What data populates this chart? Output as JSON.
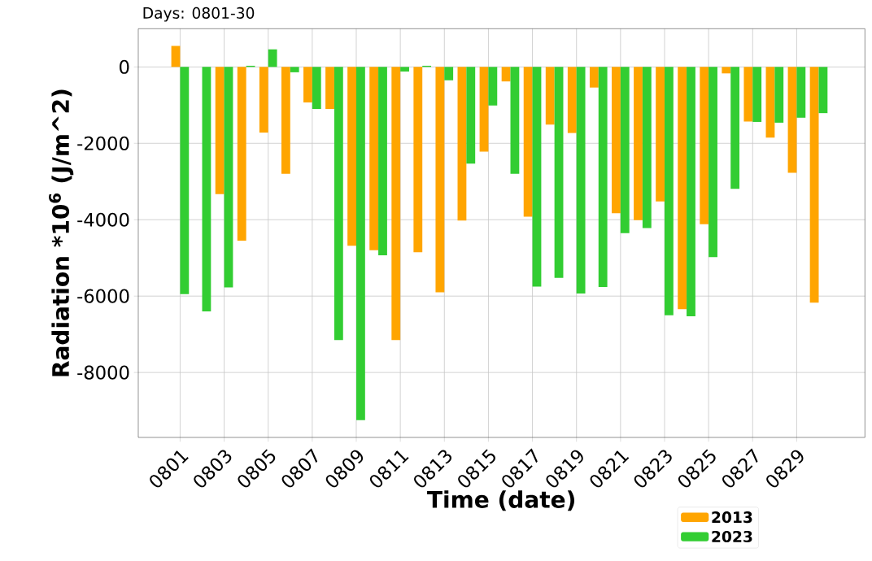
{
  "chart_data": {
    "type": "bar",
    "title": "Days: 0801-30",
    "xlabel": "Time (date)",
    "ylabel": "Radiation *10$^{6}$ (J/m^2)",
    "categories": [
      "0801",
      null,
      "0803",
      null,
      "0805",
      null,
      "0807",
      null,
      "0809",
      null,
      "0811",
      null,
      "0813",
      null,
      "0815",
      null,
      "0817",
      null,
      "0819",
      null,
      "0821",
      null,
      "0823",
      null,
      "0825",
      null,
      "0827",
      null,
      "0829",
      null
    ],
    "series": [
      {
        "name": "2013",
        "color": "#ffa500",
        "values": [
          550,
          0,
          -3330,
          -4550,
          -1720,
          -2800,
          -930,
          -1100,
          -4680,
          -4800,
          -7150,
          -4850,
          -5900,
          -4020,
          -2220,
          -380,
          -3920,
          -1510,
          -1730,
          -540,
          -3830,
          -4010,
          -3520,
          -6340,
          -4120,
          -170,
          -1430,
          -1850,
          -2770,
          -6170
        ]
      },
      {
        "name": "2023",
        "color": "#32cd32",
        "values": [
          -5950,
          -6400,
          -5770,
          30,
          460,
          -140,
          -1100,
          -7150,
          -9250,
          -4930,
          -120,
          30,
          -350,
          -2530,
          -1010,
          -2800,
          -5750,
          -5520,
          -5930,
          -5760,
          -4350,
          -4220,
          -6500,
          -6530,
          -4980,
          -3190,
          -1440,
          -1460,
          -1330,
          -1210
        ]
      }
    ],
    "ylim": [
      -9700,
      1000
    ],
    "yticks": [
      -8000,
      -6000,
      -4000,
      -2000,
      0
    ],
    "grid": true,
    "legend": "bottom right"
  }
}
